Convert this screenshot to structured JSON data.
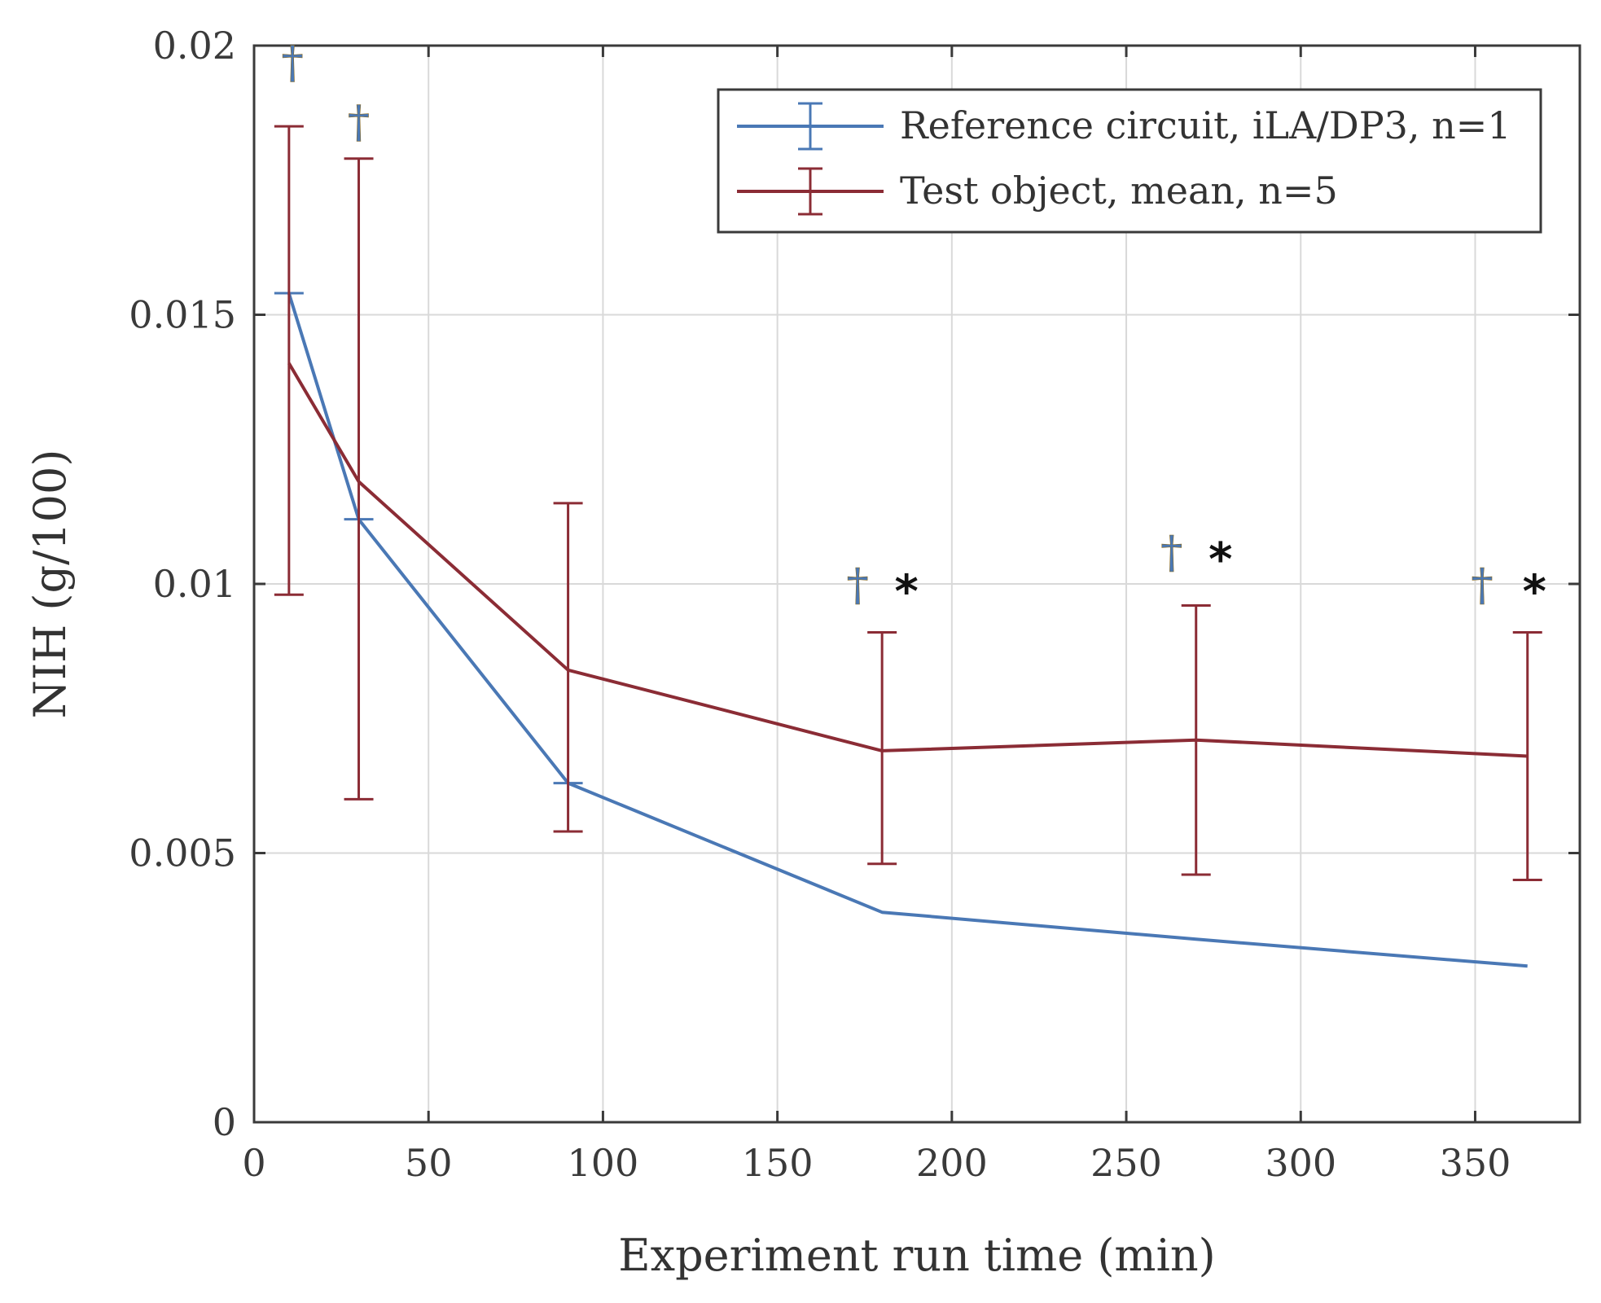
{
  "chart_data": {
    "type": "line",
    "xlabel": "Experiment run time (min)",
    "ylabel": "NIH (g/100)",
    "xlim": [
      0,
      380
    ],
    "ylim": [
      0,
      0.02
    ],
    "grid": true,
    "legend_position": "top-right",
    "x_ticks": [
      0,
      50,
      100,
      150,
      200,
      250,
      300,
      350
    ],
    "x_tick_labels": [
      "0",
      "50",
      "100",
      "150",
      "200",
      "250",
      "300",
      "350"
    ],
    "y_ticks": [
      0,
      0.005,
      0.01,
      0.015,
      0.02
    ],
    "y_tick_labels": [
      "0",
      "0.005",
      "0.01",
      "0.015",
      "0.02"
    ],
    "series": [
      {
        "name": "Reference circuit, iLA/DP3, n=1",
        "color": "#4a78b5",
        "x": [
          10,
          30,
          90,
          180,
          270,
          365
        ],
        "y": [
          0.0154,
          0.0112,
          0.0063,
          0.0039,
          0.0034,
          0.0029
        ],
        "err_low": [
          0.0154,
          0.0112,
          0.0063,
          null,
          null,
          null
        ],
        "err_high": [
          0.0154,
          0.0112,
          0.0063,
          null,
          null,
          null
        ]
      },
      {
        "name": "Test object, mean, n=5",
        "color": "#8b2c35",
        "x": [
          10,
          30,
          90,
          180,
          270,
          365
        ],
        "y": [
          0.0141,
          0.0119,
          0.0084,
          0.0069,
          0.0071,
          0.0068
        ],
        "err_low": [
          0.0098,
          0.006,
          0.0054,
          0.0048,
          0.0046,
          0.0045
        ],
        "err_high": [
          0.0185,
          0.0179,
          0.0115,
          0.0091,
          0.0096,
          0.0091
        ]
      }
    ],
    "annotations": [
      {
        "text": "†",
        "kind": "dagger",
        "x": 11,
        "y": 0.0194
      },
      {
        "text": "†",
        "kind": "dagger",
        "x": 30,
        "y": 0.0183
      },
      {
        "text": "†",
        "kind": "dagger",
        "x": 173,
        "y": 0.0097
      },
      {
        "text": "*",
        "kind": "star",
        "x": 187,
        "y": 0.0099
      },
      {
        "text": "†",
        "kind": "dagger",
        "x": 263,
        "y": 0.0103
      },
      {
        "text": "*",
        "kind": "star",
        "x": 277,
        "y": 0.0105
      },
      {
        "text": "†",
        "kind": "dagger",
        "x": 352,
        "y": 0.0097
      },
      {
        "text": "*",
        "kind": "star",
        "x": 367,
        "y": 0.0099
      }
    ]
  }
}
